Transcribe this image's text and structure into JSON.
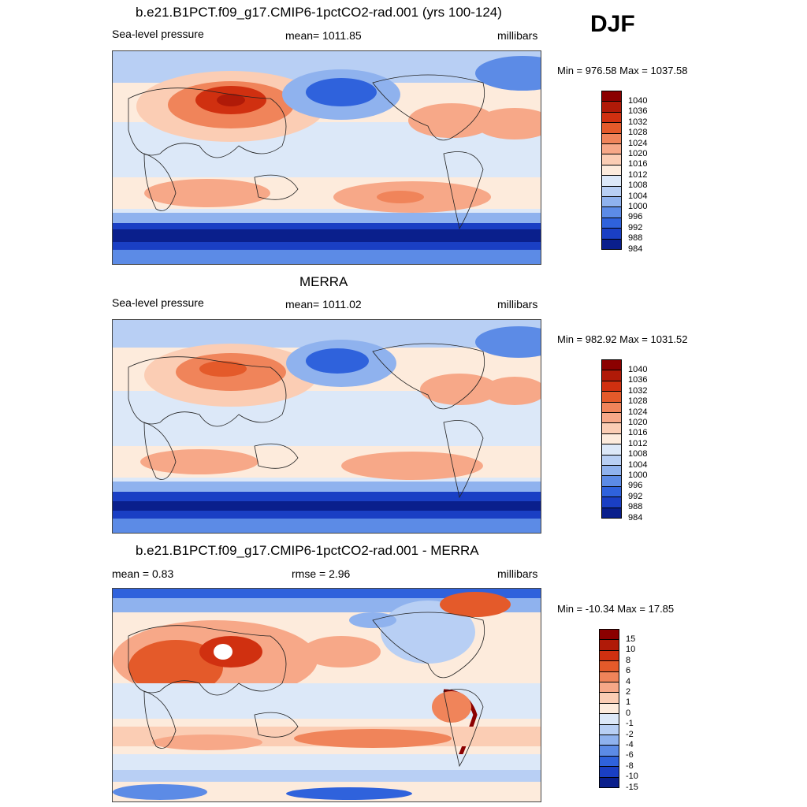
{
  "season": "DJF",
  "panels": [
    {
      "title": "b.e21.B1PCT.f09_g17.CMIP6-1pctCO2-rad.001 (yrs 100-124)",
      "left_label": "Sea-level pressure",
      "center_label": "mean= 1011.85",
      "right_label": "millibars",
      "minmax": "Min = 976.58 Max = 1037.58"
    },
    {
      "title": "MERRA",
      "left_label": "Sea-level pressure",
      "center_label": "mean= 1011.02",
      "right_label": "millibars",
      "minmax": "Min = 982.92 Max = 1031.52"
    },
    {
      "title": "b.e21.B1PCT.f09_g17.CMIP6-1pctCO2-rad.001 - MERRA",
      "left_label": "mean =   0.83",
      "center_label": "rmse =   2.96",
      "right_label": "millibars",
      "minmax": "Min = -10.34 Max =  17.85"
    }
  ],
  "colorbar_abs": {
    "labels": [
      "1040",
      "1036",
      "1032",
      "1028",
      "1024",
      "1020",
      "1016",
      "1012",
      "1008",
      "1004",
      "1000",
      "996",
      "992",
      "988",
      "984"
    ],
    "colors": [
      "#8b0000",
      "#b01a08",
      "#d03010",
      "#e45a2a",
      "#f0845a",
      "#f7a888",
      "#fbcdb4",
      "#fdebdc",
      "#dce8f8",
      "#b8cff4",
      "#8fb2ee",
      "#5c8be6",
      "#2f62dc",
      "#1a3fc4",
      "#0a1f8c"
    ]
  },
  "colorbar_diff": {
    "labels": [
      "15",
      "10",
      "8",
      "6",
      "4",
      "2",
      "1",
      "0",
      "-1",
      "-2",
      "-4",
      "-6",
      "-8",
      "-10",
      "-15"
    ],
    "colors": [
      "#8b0000",
      "#b01a08",
      "#d03010",
      "#e45a2a",
      "#f0845a",
      "#f7a888",
      "#fbcdb4",
      "#fdebdc",
      "#dce8f8",
      "#b8cff4",
      "#8fb2ee",
      "#5c8be6",
      "#2f62dc",
      "#1a3fc4",
      "#0a1f8c"
    ]
  }
}
